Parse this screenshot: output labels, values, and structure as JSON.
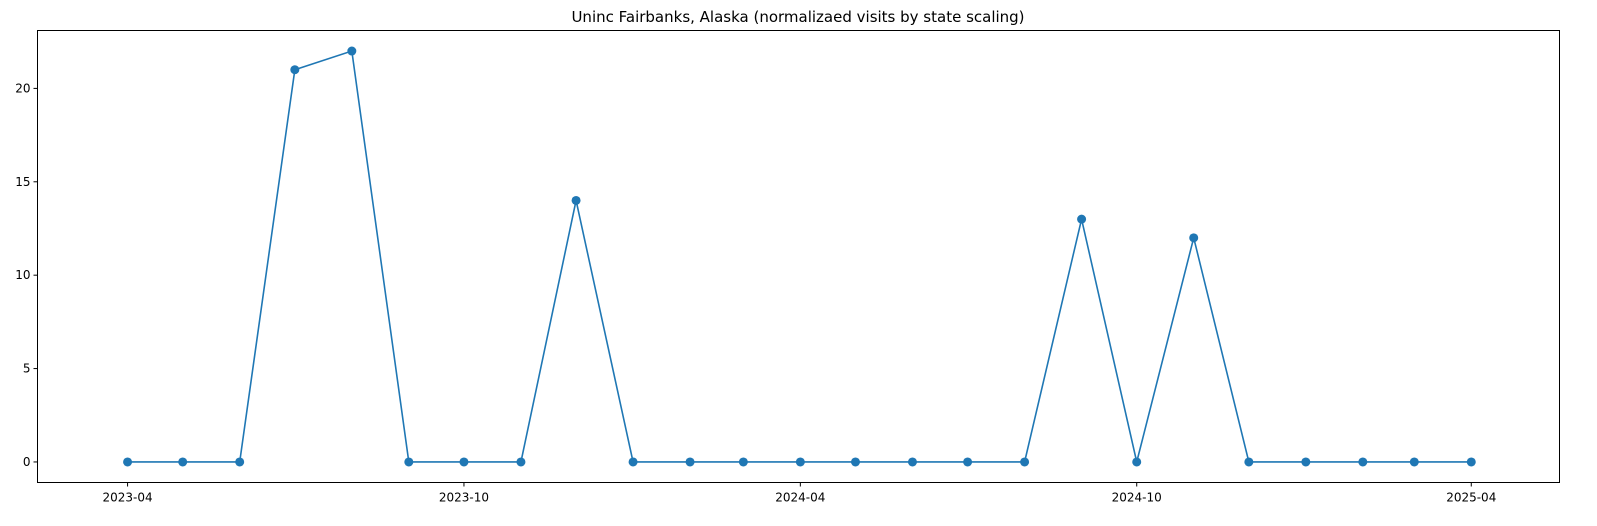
{
  "chart_data": {
    "type": "line",
    "title": "Uninc Fairbanks, Alaska (normalizaed visits by state scaling)",
    "xlabel": "",
    "ylabel": "",
    "x_type": "date",
    "x": [
      "2023-04-01",
      "2023-05-01",
      "2023-06-01",
      "2023-07-01",
      "2023-08-01",
      "2023-09-01",
      "2023-10-01",
      "2023-11-01",
      "2023-12-01",
      "2024-01-01",
      "2024-02-01",
      "2024-03-01",
      "2024-04-01",
      "2024-05-01",
      "2024-06-01",
      "2024-07-01",
      "2024-08-01",
      "2024-09-01",
      "2024-10-01",
      "2024-11-01",
      "2024-12-01",
      "2025-01-01",
      "2025-02-01",
      "2025-03-01",
      "2025-04-01"
    ],
    "series": [
      {
        "values": [
          0,
          0,
          0,
          21,
          22,
          0,
          0,
          0,
          14,
          0,
          0,
          0,
          0,
          0,
          0,
          0,
          0,
          13,
          0,
          12,
          0,
          0,
          0,
          0,
          0
        ],
        "color": "#1f77b4",
        "marker": "circle"
      }
    ],
    "xticks": [
      "2023-04",
      "2023-10",
      "2024-04",
      "2024-10",
      "2025-04"
    ],
    "yticks": [
      "0",
      "5",
      "10",
      "15",
      "20"
    ],
    "ylim": [
      -1.1,
      23.1
    ],
    "xlim": [
      "2023-02-11",
      "2025-05-19"
    ],
    "grid": false,
    "legend": "none"
  }
}
